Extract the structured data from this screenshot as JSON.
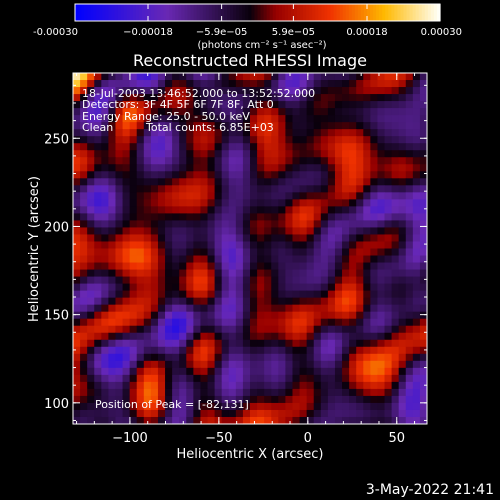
{
  "chart_data": {
    "type": "heatmap",
    "title": "Reconstructed RHESSI Image",
    "xlabel": "Heliocentric X (arcsec)",
    "ylabel": "Heliocentric Y (arcsec)",
    "xlim": [
      -132,
      67
    ],
    "ylim": [
      88,
      287
    ],
    "xticks": [
      -100,
      -50,
      0,
      50
    ],
    "xtick_labels": [
      "−100",
      "−50",
      "0",
      "50"
    ],
    "yticks": [
      100,
      150,
      200,
      250
    ],
    "ytick_labels": [
      "100",
      "150",
      "200",
      "250"
    ],
    "colorbar": {
      "min": -0.0003,
      "max": 0.0003,
      "ticks": [
        -0.0003,
        -0.00018,
        -5.9e-05,
        5.9e-05,
        0.00018,
        0.0003
      ],
      "tick_labels": [
        "-0.00030",
        "−0.00018",
        "−5.9e−05",
        "5.9e−05",
        "0.00018",
        "0.00030"
      ],
      "units_label": "(photons cm⁻² s⁻¹ asec⁻²)"
    },
    "annotations": {
      "time_range": "18-Jul-2003 13:46:52.000 to 13:52:52.000",
      "detectors": "Detectors: 3F 4F 5F 6F 7F 8F, Att 0",
      "energy": "Energy Range: 25.0 - 50.0 keV",
      "algorithm": "Clean",
      "total_counts": "Total counts: 6.85E+03",
      "peak": "Position of Peak = [-82,131]"
    },
    "peak_position": [
      -82,
      131
    ],
    "image_grid": {
      "nx": 50,
      "ny": 50,
      "seed": 7
    }
  },
  "timestamp": "3-May-2022 21:41"
}
